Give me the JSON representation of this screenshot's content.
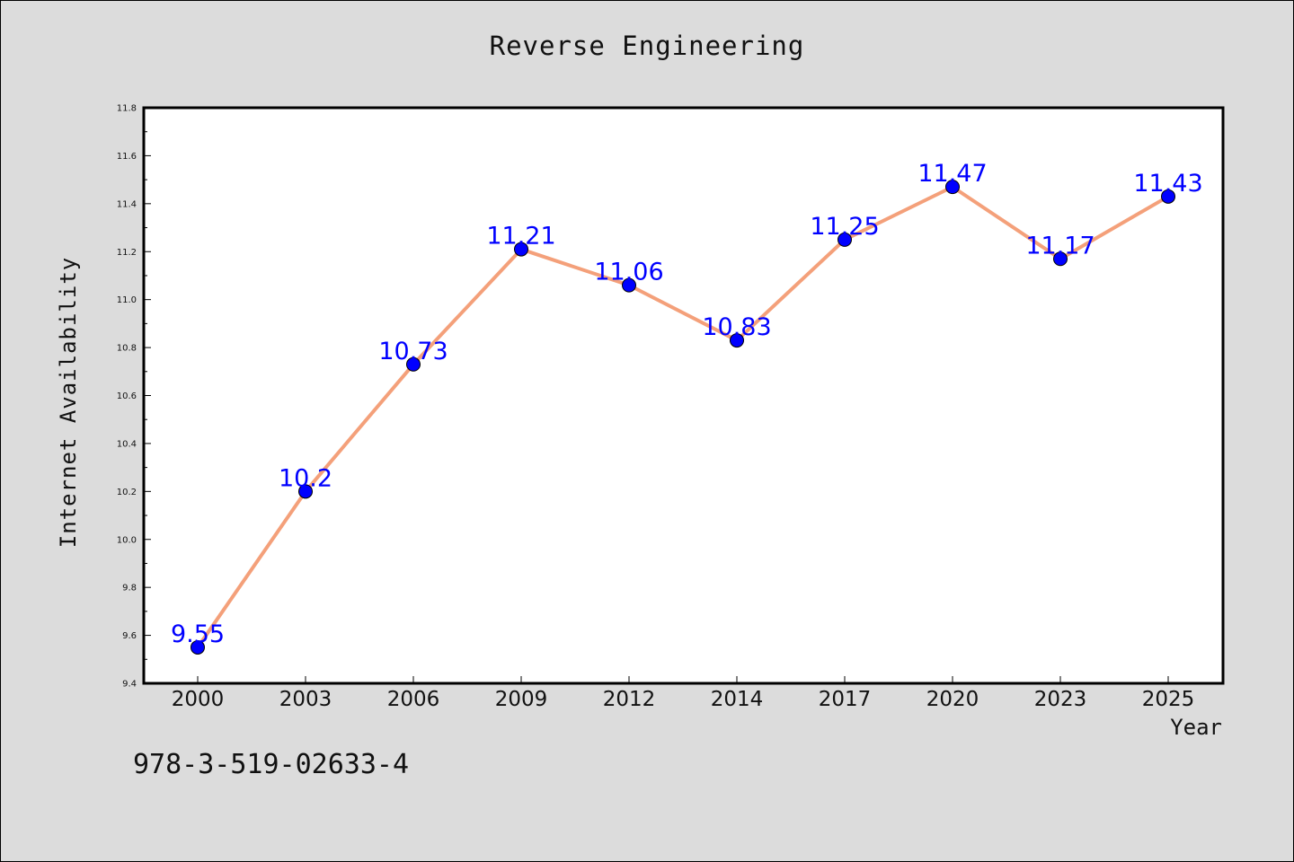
{
  "chart_data": {
    "type": "line",
    "title": "Reverse Engineering",
    "xlabel": "Year",
    "ylabel": "Internet Availability",
    "categories": [
      "2000",
      "2003",
      "2006",
      "2009",
      "2012",
      "2014",
      "2017",
      "2020",
      "2023",
      "2025"
    ],
    "series": [
      {
        "values": [
          9.55,
          10.2,
          10.73,
          11.21,
          11.06,
          10.83,
          11.25,
          11.47,
          11.17,
          11.43
        ],
        "labels": [
          "9.55",
          "10.2",
          "10.73",
          "11.21",
          "11.06",
          "10.83",
          "11.25",
          "11.47",
          "11.17",
          "11.43"
        ]
      }
    ],
    "ylim": [
      9.4,
      11.8
    ],
    "yticks": [
      "9.4",
      "9.6",
      "9.8",
      "10.0",
      "10.2",
      "10.4",
      "10.6",
      "10.8",
      "11.0",
      "11.2",
      "11.4",
      "11.6",
      "11.8"
    ],
    "grid": false,
    "colors": {
      "line": "#f4a07a",
      "marker": "#0000ff",
      "data_label": "#0000ff",
      "plot_background": "#ffffff",
      "figure_background": "#dcdcdc"
    }
  },
  "footnote": "978-3-519-02633-4"
}
